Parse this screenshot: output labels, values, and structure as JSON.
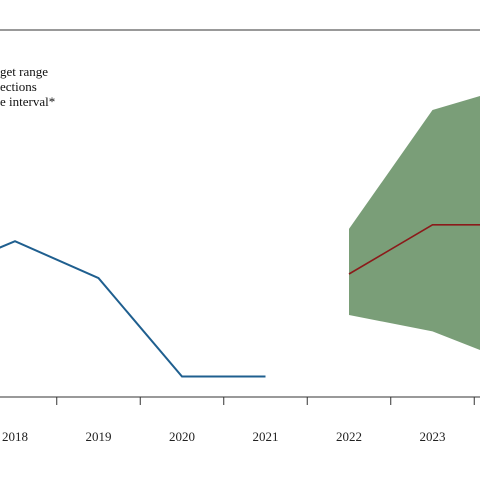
{
  "chart_data": {
    "type": "line",
    "legend": [
      "get range",
      "ections",
      "e interval*"
    ],
    "x_ticks": [
      "2018",
      "2019",
      "2020",
      "2021",
      "2022",
      "2023"
    ],
    "x_range": [
      2017.3,
      2024.0
    ],
    "y_range": [
      0,
      4.3
    ],
    "grid": false,
    "colors": {
      "history": "#1f5f8f",
      "projection": "#8b1a1a",
      "interval_fill": "#7a9e78",
      "axis": "#333333"
    },
    "series": [
      {
        "values": [
          {
            "x": 2017.3,
            "y": 1.6
          },
          {
            "x": 2018.0,
            "y": 1.9
          },
          {
            "x": 2019.0,
            "y": 1.45
          },
          {
            "x": 2020.0,
            "y": 0.25
          },
          {
            "x": 2021.0,
            "y": 0.25
          }
        ]
      },
      {
        "values": [
          {
            "x": 2022.0,
            "y": 1.5
          },
          {
            "x": 2023.0,
            "y": 2.1
          },
          {
            "x": 2024.0,
            "y": 2.1
          }
        ]
      }
    ],
    "interval": {
      "upper": [
        {
          "x": 2022.0,
          "y": 2.05
        },
        {
          "x": 2023.0,
          "y": 3.5
        },
        {
          "x": 2024.0,
          "y": 3.8
        }
      ],
      "lower": [
        {
          "x": 2022.0,
          "y": 1.0
        },
        {
          "x": 2023.0,
          "y": 0.8
        },
        {
          "x": 2024.0,
          "y": 0.4
        }
      ]
    }
  }
}
